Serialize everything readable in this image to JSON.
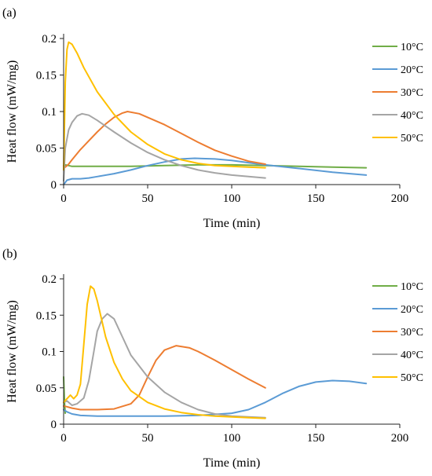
{
  "figure": {
    "colors": {
      "10°C": "#70ad47",
      "20°C": "#5b9bd5",
      "30°C": "#ed7d31",
      "40°C": "#a5a5a5",
      "50°C": "#ffc000"
    }
  },
  "chart_data": [
    {
      "panel": "(a)",
      "type": "line",
      "xlabel": "Time (min)",
      "ylabel": "Heat flow (mW/mg)",
      "xlim": [
        0,
        200
      ],
      "ylim": [
        0,
        0.2
      ],
      "xticks": [
        0,
        50,
        100,
        150,
        200
      ],
      "yticks": [
        0,
        0.05,
        0.1,
        0.15,
        0.2
      ],
      "xtick_labels": [
        "0",
        "50",
        "100",
        "150",
        "200"
      ],
      "ytick_labels": [
        "0",
        "0.05",
        "0.1",
        "0.15",
        "0.2"
      ],
      "grid": false,
      "legend": "right",
      "series": [
        {
          "name": "10°C",
          "color": "#70ad47",
          "x": [
            0,
            1,
            3,
            5,
            10,
            20,
            40,
            60,
            80,
            100,
            120,
            140,
            160,
            180
          ],
          "y": [
            0.025,
            0.027,
            0.026,
            0.025,
            0.025,
            0.025,
            0.025,
            0.026,
            0.027,
            0.027,
            0.026,
            0.025,
            0.024,
            0.023
          ]
        },
        {
          "name": "20°C",
          "color": "#5b9bd5",
          "x": [
            0,
            2,
            5,
            10,
            15,
            20,
            30,
            40,
            50,
            60,
            70,
            78,
            90,
            100,
            110,
            120,
            140,
            160,
            180
          ],
          "y": [
            0.0,
            0.006,
            0.008,
            0.008,
            0.009,
            0.011,
            0.015,
            0.02,
            0.026,
            0.031,
            0.035,
            0.036,
            0.035,
            0.033,
            0.03,
            0.027,
            0.022,
            0.017,
            0.013
          ]
        },
        {
          "name": "30°C",
          "color": "#ed7d31",
          "x": [
            0,
            1,
            3,
            5,
            10,
            15,
            20,
            25,
            30,
            35,
            38,
            45,
            50,
            60,
            70,
            80,
            90,
            100,
            110,
            120
          ],
          "y": [
            0.026,
            0.024,
            0.028,
            0.034,
            0.048,
            0.06,
            0.072,
            0.083,
            0.092,
            0.098,
            0.1,
            0.097,
            0.092,
            0.082,
            0.07,
            0.058,
            0.047,
            0.039,
            0.032,
            0.028
          ]
        },
        {
          "name": "40°C",
          "color": "#a5a5a5",
          "x": [
            0,
            1,
            3,
            5,
            8,
            11,
            15,
            20,
            30,
            40,
            50,
            60,
            70,
            80,
            90,
            100,
            110,
            120
          ],
          "y": [
            0.005,
            0.05,
            0.075,
            0.085,
            0.094,
            0.097,
            0.095,
            0.088,
            0.072,
            0.057,
            0.044,
            0.034,
            0.026,
            0.02,
            0.016,
            0.013,
            0.011,
            0.009
          ]
        },
        {
          "name": "50°C",
          "color": "#ffc000",
          "x": [
            0,
            1,
            2,
            3,
            5,
            8,
            12,
            20,
            30,
            40,
            50,
            60,
            70,
            80,
            90,
            100,
            110,
            120
          ],
          "y": [
            0.02,
            0.14,
            0.185,
            0.195,
            0.192,
            0.18,
            0.16,
            0.127,
            0.096,
            0.072,
            0.055,
            0.042,
            0.034,
            0.029,
            0.026,
            0.025,
            0.024,
            0.023
          ]
        }
      ]
    },
    {
      "panel": "(b)",
      "type": "line",
      "xlabel": "Time (min)",
      "ylabel": "Heat flow (mW/mg)",
      "xlim": [
        0,
        200
      ],
      "ylim": [
        0,
        0.2
      ],
      "xticks": [
        0,
        50,
        100,
        150,
        200
      ],
      "yticks": [
        0,
        0.05,
        0.1,
        0.15,
        0.2
      ],
      "xtick_labels": [
        "0",
        "50",
        "100",
        "150",
        "200"
      ],
      "ytick_labels": [
        "0",
        "0.05",
        "0.1",
        "0.15",
        "0.2"
      ],
      "grid": false,
      "legend": "right",
      "series": [
        {
          "name": "10°C",
          "color": "#70ad47",
          "x": [
            0,
            0.5,
            1
          ],
          "y": [
            0.065,
            0.03,
            0.015
          ]
        },
        {
          "name": "20°C",
          "color": "#5b9bd5",
          "x": [
            0,
            2,
            5,
            10,
            20,
            40,
            60,
            80,
            100,
            110,
            120,
            130,
            140,
            150,
            160,
            170,
            180
          ],
          "y": [
            0.02,
            0.017,
            0.014,
            0.012,
            0.011,
            0.011,
            0.011,
            0.012,
            0.015,
            0.02,
            0.03,
            0.042,
            0.052,
            0.058,
            0.06,
            0.059,
            0.056
          ]
        },
        {
          "name": "30°C",
          "color": "#ed7d31",
          "x": [
            0,
            2,
            5,
            10,
            20,
            30,
            40,
            45,
            50,
            55,
            60,
            67,
            75,
            80,
            90,
            100,
            110,
            120
          ],
          "y": [
            0.025,
            0.024,
            0.022,
            0.02,
            0.02,
            0.021,
            0.028,
            0.04,
            0.065,
            0.088,
            0.102,
            0.108,
            0.105,
            0.1,
            0.088,
            0.075,
            0.062,
            0.05
          ]
        },
        {
          "name": "40°C",
          "color": "#a5a5a5",
          "x": [
            0,
            2,
            5,
            8,
            12,
            15,
            18,
            20,
            23,
            26,
            30,
            35,
            40,
            50,
            60,
            70,
            80,
            90,
            100,
            110,
            120
          ],
          "y": [
            0.03,
            0.032,
            0.026,
            0.028,
            0.036,
            0.06,
            0.1,
            0.128,
            0.145,
            0.152,
            0.145,
            0.12,
            0.095,
            0.065,
            0.044,
            0.03,
            0.02,
            0.014,
            0.011,
            0.01,
            0.009
          ]
        },
        {
          "name": "50°C",
          "color": "#ffc000",
          "x": [
            0,
            2,
            4,
            6,
            8,
            10,
            12,
            14,
            16,
            18,
            20,
            25,
            30,
            35,
            40,
            50,
            60,
            70,
            80,
            90,
            100,
            110,
            120
          ],
          "y": [
            0.03,
            0.035,
            0.04,
            0.035,
            0.04,
            0.055,
            0.11,
            0.165,
            0.19,
            0.186,
            0.17,
            0.12,
            0.085,
            0.062,
            0.046,
            0.03,
            0.021,
            0.016,
            0.013,
            0.011,
            0.01,
            0.009,
            0.008
          ]
        }
      ]
    }
  ]
}
